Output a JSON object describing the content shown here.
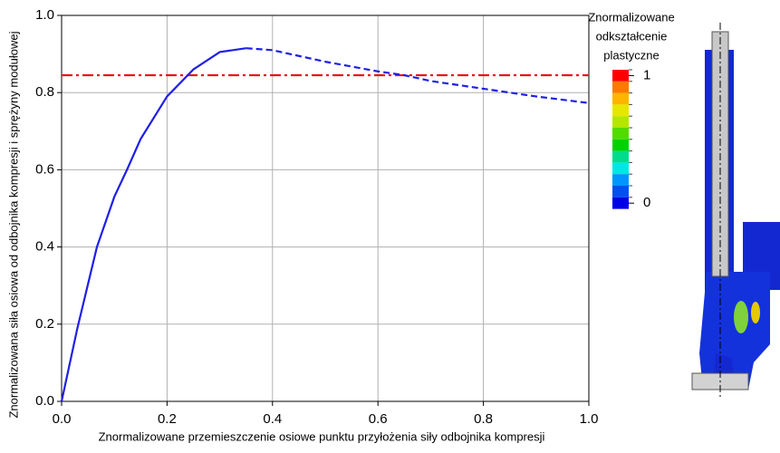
{
  "chart_data": {
    "type": "line",
    "xlabel": "Znormalizowane przemieszczenie osiowe punktu przyłożenia siły odbojnika kompresji",
    "ylabel": "Znormalizowana siła osiowa od odbojnika kompresji i sprężyny modułowej",
    "xlim": [
      0,
      1
    ],
    "ylim": [
      0,
      1
    ],
    "xticks": [
      {
        "value": 0,
        "label": "0.0"
      },
      {
        "value": 0.2,
        "label": "0.2"
      },
      {
        "value": 0.4,
        "label": "0.4"
      },
      {
        "value": 0.6,
        "label": "0.6"
      },
      {
        "value": 0.8,
        "label": "0.8"
      },
      {
        "value": 1,
        "label": "1.0"
      }
    ],
    "yticks": [
      {
        "value": 0,
        "label": "0.0"
      },
      {
        "value": 0.2,
        "label": "0.2"
      },
      {
        "value": 0.4,
        "label": "0.4"
      },
      {
        "value": 0.6,
        "label": "0.6"
      },
      {
        "value": 0.8,
        "label": "0.8"
      },
      {
        "value": 1,
        "label": "1.0"
      }
    ],
    "grid": true,
    "series": [
      {
        "color": "#1f1fe6",
        "style": "solid",
        "x": [
          0,
          0.03,
          0.067,
          0.1,
          0.124,
          0.15,
          0.2,
          0.25,
          0.3,
          0.35
        ],
        "values": [
          0,
          0.19,
          0.4,
          0.53,
          0.6,
          0.68,
          0.79,
          0.86,
          0.905,
          0.915
        ]
      },
      {
        "color": "#1f1fe6",
        "style": "dashed",
        "x": [
          0.35,
          0.4,
          0.5,
          0.6,
          0.65,
          0.7,
          0.8,
          0.9,
          1.0
        ],
        "values": [
          0.915,
          0.91,
          0.88,
          0.855,
          0.845,
          0.83,
          0.81,
          0.79,
          0.773
        ]
      }
    ],
    "hline": {
      "value": 0.845,
      "color": "#e8141b",
      "style": "dashdot"
    },
    "colorbar": {
      "title_lines": [
        "Znormalizowane",
        "odkształcenie",
        "plastyczne"
      ],
      "clim": [
        0,
        1
      ],
      "ticks": [
        0,
        1
      ],
      "colors": [
        "#ff0000",
        "#ff7800",
        "#ffb400",
        "#e6e600",
        "#b4e600",
        "#50dc00",
        "#00d200",
        "#00dc8c",
        "#00e6e6",
        "#0096ff",
        "#0050f0",
        "#0000e6"
      ]
    }
  }
}
